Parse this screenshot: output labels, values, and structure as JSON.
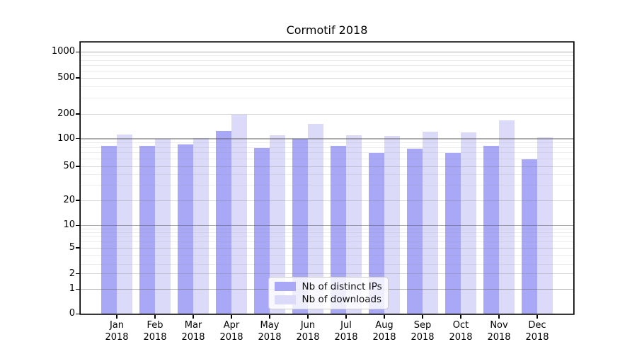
{
  "title": "Cormotif 2018",
  "colors": {
    "ips": "#a8a8f6",
    "downloads": "#dbdbf9",
    "spine": "#000000"
  },
  "legend": {
    "items": [
      {
        "label": "Nb of distinct IPs",
        "color_key": "ips"
      },
      {
        "label": "Nb of downloads",
        "color_key": "downloads"
      }
    ]
  },
  "chart_data": {
    "type": "bar",
    "title": "Cormotif 2018",
    "categories": [
      "Jan 2018",
      "Feb 2018",
      "Mar 2018",
      "Apr 2018",
      "May 2018",
      "Jun 2018",
      "Jul 2018",
      "Aug 2018",
      "Sep 2018",
      "Oct 2018",
      "Nov 2018",
      "Dec 2018"
    ],
    "x_tick_months": [
      "Jan",
      "Feb",
      "Mar",
      "Apr",
      "May",
      "Jun",
      "Jul",
      "Aug",
      "Sep",
      "Oct",
      "Nov",
      "Dec"
    ],
    "x_tick_year": "2018",
    "series": [
      {
        "name": "Nb of distinct IPs",
        "color_key": "ips",
        "values": [
          84,
          83,
          86,
          124,
          79,
          100,
          83,
          70,
          78,
          70,
          83,
          60
        ]
      },
      {
        "name": "Nb of downloads",
        "color_key": "downloads",
        "values": [
          112,
          100,
          102,
          195,
          111,
          151,
          111,
          108,
          121,
          119,
          166,
          103
        ]
      }
    ],
    "xlabel": "",
    "ylabel": "",
    "yscale": "symlog",
    "ylim": [
      0,
      1200
    ],
    "y_ticks": [
      0,
      1,
      2,
      5,
      10,
      20,
      50,
      100,
      200,
      500,
      1000
    ],
    "y_minor_gridlines": [
      3,
      4,
      6,
      7,
      8,
      9,
      30,
      40,
      60,
      70,
      80,
      90,
      300,
      400,
      600,
      700,
      800,
      900
    ],
    "y_mid_gridlines": [
      2,
      5,
      20,
      50,
      200,
      500
    ],
    "y_major_gridlines": [
      1,
      10,
      100,
      1000
    ],
    "grid": "both",
    "legend_position": "lower center"
  }
}
